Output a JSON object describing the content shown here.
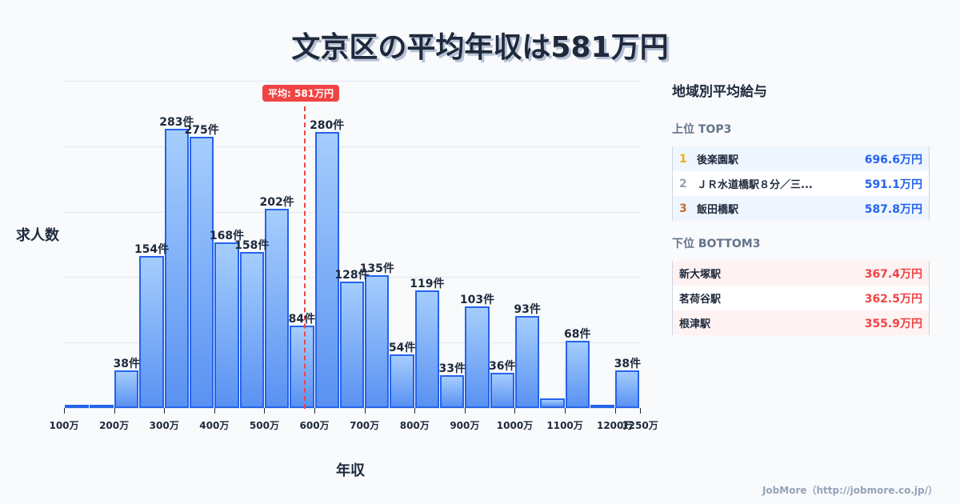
{
  "title": "文京区の平均年収は581万円",
  "chart_data": {
    "type": "bar",
    "title": "文京区の平均年収は581万円",
    "xlabel": "年収",
    "ylabel": "求人数",
    "categories": [
      "100-150万",
      "150-200万",
      "200-250万",
      "250-300万",
      "300-350万",
      "350-400万",
      "400-450万",
      "450-500万",
      "500-550万",
      "550-600万",
      "600-650万",
      "650-700万",
      "700-750万",
      "750-800万",
      "800-850万",
      "850-900万",
      "900-950万",
      "950-1000万",
      "1000-1050万",
      "1050-1100万",
      "1100-1150万",
      "1150-1200万",
      "1200-1250万"
    ],
    "values": [
      3,
      3,
      38,
      154,
      283,
      275,
      168,
      158,
      202,
      84,
      280,
      128,
      135,
      54,
      119,
      33,
      103,
      36,
      93,
      10,
      68,
      3,
      38
    ],
    "value_labels": [
      "",
      "",
      "38件",
      "154件",
      "283件",
      "275件",
      "168件",
      "158件",
      "202件",
      "84件",
      "280件",
      "128件",
      "135件",
      "54件",
      "119件",
      "33件",
      "103件",
      "36件",
      "93件",
      "",
      "68件",
      "",
      "38件"
    ],
    "x_ticks": [
      "100万",
      "200万",
      "300万",
      "400万",
      "500万",
      "600万",
      "700万",
      "800万",
      "900万",
      "1000万",
      "1100万",
      "1200万",
      "1250万"
    ],
    "ylim": [
      0,
      332
    ],
    "grid": true,
    "annotations": [
      {
        "type": "vline",
        "x": 581,
        "label": "平均: 581万円",
        "color": "#ef4444"
      }
    ],
    "bar_color": "#2563eb"
  },
  "axis": {
    "ylabel": "求人数",
    "xlabel": "年収"
  },
  "average": {
    "label": "平均: 581万円"
  },
  "panel": {
    "title": "地域別平均給与",
    "top_heading": "上位 TOP3",
    "top": [
      {
        "rank": "1",
        "name": "後楽園駅",
        "value": "696.6万円",
        "rank_color": "#eab308"
      },
      {
        "rank": "2",
        "name": "ＪＲ水道橋駅８分／三...",
        "value": "591.1万円",
        "rank_color": "#94a3b8"
      },
      {
        "rank": "3",
        "name": "飯田橋駅",
        "value": "587.8万円",
        "rank_color": "#c2702a"
      }
    ],
    "bottom_heading": "下位 BOTTOM3",
    "bottom": [
      {
        "name": "新大塚駅",
        "value": "367.4万円"
      },
      {
        "name": "茗荷谷駅",
        "value": "362.5万円"
      },
      {
        "name": "根津駅",
        "value": "355.9万円"
      }
    ]
  },
  "footer": "JobMore（http://jobmore.co.jp/）"
}
